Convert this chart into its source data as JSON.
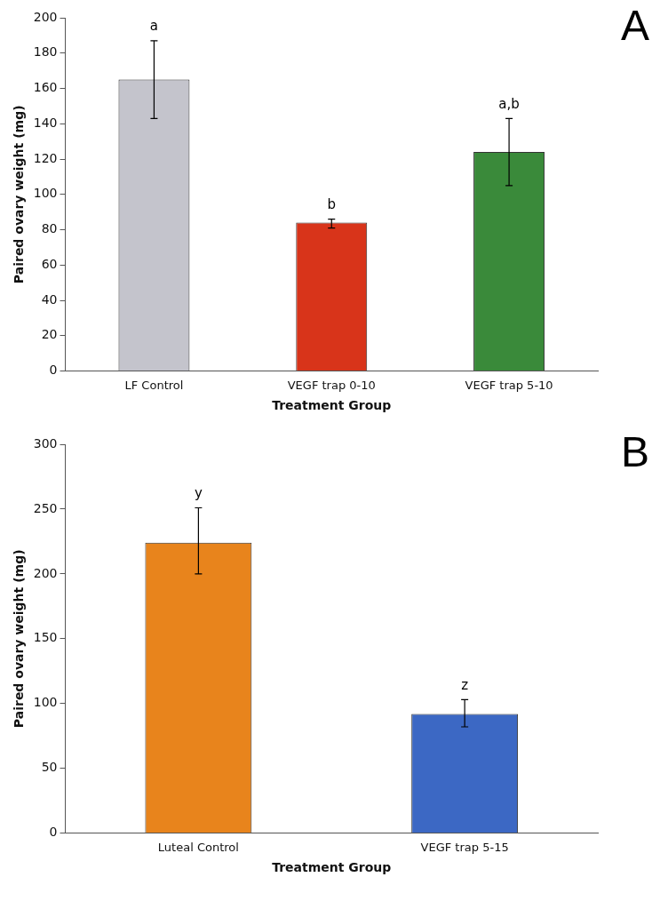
{
  "chart_data": [
    {
      "type": "bar",
      "xlabel": "Treatment Group",
      "ylabel": "Paired ovary weight (mg)",
      "categories": [
        "LF Control",
        "VEGF trap 0-10",
        "VEGF trap 5-10"
      ],
      "values": [
        165,
        84,
        124
      ],
      "colors": [
        "#c4c4cc",
        "#d8341a",
        "#3a8a3a"
      ],
      "errors": [
        [
          143,
          187
        ],
        [
          81,
          86
        ],
        [
          105,
          143
        ]
      ],
      "ylim": [
        0,
        200
      ],
      "yticks": [
        0,
        20,
        40,
        60,
        80,
        100,
        120,
        140,
        160,
        180,
        200
      ],
      "grid": false,
      "legend": false,
      "annotations": [
        {
          "text": "a",
          "x": "LF Control",
          "y": 187
        },
        {
          "text": "b",
          "x": "VEGF trap 0-10",
          "y": 86
        },
        {
          "text": "a,b",
          "x": "VEGF trap 5-10",
          "y": 143
        },
        "A"
      ]
    },
    {
      "type": "bar",
      "xlabel": "Treatment Group",
      "ylabel": "Paired ovary weight (mg)",
      "categories": [
        "Luteal Control",
        "VEGF trap 5-15"
      ],
      "values": [
        224,
        92
      ],
      "colors": [
        "#e8841c",
        "#3c68c4"
      ],
      "errors": [
        [
          200,
          251
        ],
        [
          82,
          103
        ]
      ],
      "ylim": [
        0,
        300
      ],
      "yticks": [
        0,
        50,
        100,
        150,
        200,
        250,
        300
      ],
      "grid": false,
      "legend": false,
      "annotations": [
        {
          "text": "y",
          "x": "Luteal Control",
          "y": 251
        },
        {
          "text": "z",
          "x": "VEGF trap 5-15",
          "y": 103
        },
        "B"
      ]
    }
  ]
}
